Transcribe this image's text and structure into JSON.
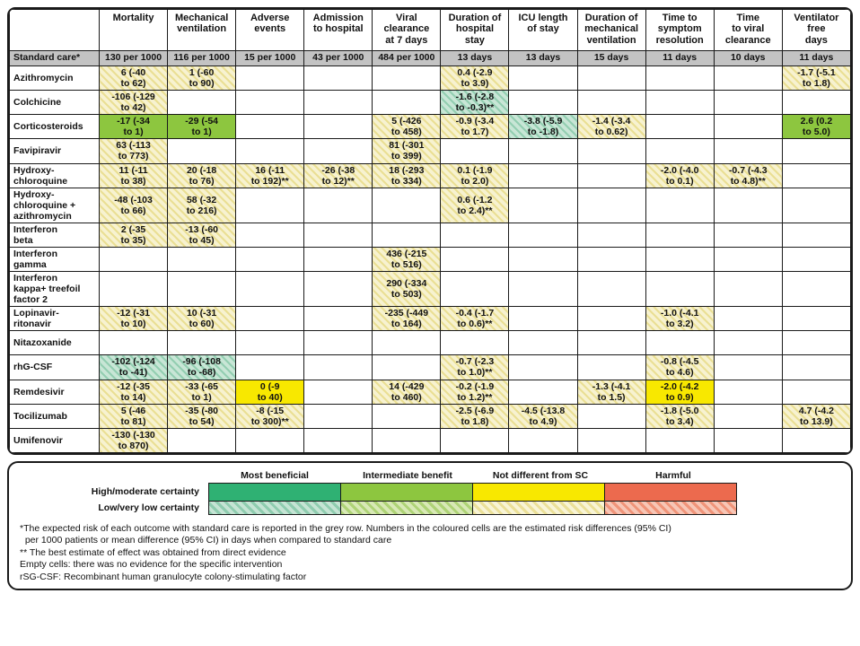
{
  "colors": {
    "most_beneficial_solid": "#2fb173",
    "intermediate_benefit_solid": "#8dc63f",
    "not_different_solid": "#f8e800",
    "harmful_solid": "#ec6a4e",
    "standard_care_row_grey": "#c3c3c3",
    "border": "#1a1a1a"
  },
  "table": {
    "columns": [
      "Mortality",
      "Mechanical\nventilation",
      "Adverse\nevents",
      "Admission\nto hospital",
      "Viral\nclearance\nat 7 days",
      "Duration of\nhospital\nstay",
      "ICU length\nof stay",
      "Duration of\nmechanical\nventilation",
      "Time to\nsymptom\nresolution",
      "Time\nto viral\nclearance",
      "Ventilator\nfree\ndays"
    ],
    "standard_care": {
      "label": "Standard care*",
      "values": [
        "130 per 1000",
        "116 per 1000",
        "15 per 1000",
        "43 per 1000",
        "484 per 1000",
        "13 days",
        "13 days",
        "15 days",
        "11 days",
        "10 days",
        "11 days"
      ]
    },
    "rows": [
      {
        "label": "Azithromycin",
        "cells": [
          {
            "c": 0,
            "text": "6 (-40\nto 62)",
            "style": "yh"
          },
          {
            "c": 1,
            "text": "1 (-60\nto 90)",
            "style": "yh"
          },
          {
            "c": 5,
            "text": "0.4 (-2.9\nto 3.9)",
            "style": "yh"
          },
          {
            "c": 10,
            "text": "-1.7 (-5.1\nto 1.8)",
            "style": "yh"
          }
        ]
      },
      {
        "label": "Colchicine",
        "cells": [
          {
            "c": 0,
            "text": "-106 (-129\nto 42)",
            "style": "yh"
          },
          {
            "c": 5,
            "text": "-1.6 (-2.8\nto -0.3)**",
            "style": "th"
          }
        ]
      },
      {
        "label": "Corticosteroids",
        "cells": [
          {
            "c": 0,
            "text": "-17 (-34\nto 1)",
            "style": "gs"
          },
          {
            "c": 1,
            "text": "-29 (-54\nto 1)",
            "style": "gs"
          },
          {
            "c": 4,
            "text": "5 (-426\nto 458)",
            "style": "yh"
          },
          {
            "c": 5,
            "text": "-0.9 (-3.4\nto 1.7)",
            "style": "yh"
          },
          {
            "c": 6,
            "text": "-3.8 (-5.9\nto -1.8)",
            "style": "th"
          },
          {
            "c": 7,
            "text": "-1.4 (-3.4\nto 0.62)",
            "style": "yh"
          },
          {
            "c": 10,
            "text": "2.6 (0.2\nto 5.0)",
            "style": "gs"
          }
        ]
      },
      {
        "label": "Favipiravir",
        "cells": [
          {
            "c": 0,
            "text": "63 (-113\nto 773)",
            "style": "yh"
          },
          {
            "c": 4,
            "text": "81 (-301\nto 399)",
            "style": "yh"
          }
        ]
      },
      {
        "label": "Hydroxy-\nchloroquine",
        "cells": [
          {
            "c": 0,
            "text": "11 (-11\nto 38)",
            "style": "yh"
          },
          {
            "c": 1,
            "text": "20 (-18\nto 76)",
            "style": "yh"
          },
          {
            "c": 2,
            "text": "16 (-11\nto 192)**",
            "style": "yh"
          },
          {
            "c": 3,
            "text": "-26 (-38\nto 12)**",
            "style": "yh"
          },
          {
            "c": 4,
            "text": "18 (-293\nto 334)",
            "style": "yh"
          },
          {
            "c": 5,
            "text": "0.1 (-1.9\nto 2.0)",
            "style": "yh"
          },
          {
            "c": 8,
            "text": "-2.0 (-4.0\nto 0.1)",
            "style": "yh"
          },
          {
            "c": 9,
            "text": "-0.7 (-4.3\nto 4.8)**",
            "style": "yh"
          }
        ]
      },
      {
        "label": "Hydroxy-\nchloroquine +\nazithromycin",
        "cells": [
          {
            "c": 0,
            "text": "-48 (-103\nto 66)",
            "style": "yh"
          },
          {
            "c": 1,
            "text": "58 (-32\nto 216)",
            "style": "yh"
          },
          {
            "c": 5,
            "text": "0.6 (-1.2\nto 2.4)**",
            "style": "yh"
          }
        ]
      },
      {
        "label": "Interferon\nbeta",
        "cells": [
          {
            "c": 0,
            "text": "2 (-35\nto 35)",
            "style": "yh"
          },
          {
            "c": 1,
            "text": "-13 (-60\nto 45)",
            "style": "yh"
          }
        ]
      },
      {
        "label": "Interferon\ngamma",
        "cells": [
          {
            "c": 4,
            "text": "436 (-215\nto 516)",
            "style": "yh"
          }
        ]
      },
      {
        "label": "Interferon\nkappa+ treefoil\nfactor 2",
        "cells": [
          {
            "c": 4,
            "text": "290 (-334\nto 503)",
            "style": "yh"
          }
        ]
      },
      {
        "label": "Lopinavir-\nritonavir",
        "cells": [
          {
            "c": 0,
            "text": "-12 (-31\nto 10)",
            "style": "yh"
          },
          {
            "c": 1,
            "text": "10 (-31\nto 60)",
            "style": "yh"
          },
          {
            "c": 4,
            "text": "-235 (-449\nto 164)",
            "style": "yh"
          },
          {
            "c": 5,
            "text": "-0.4 (-1.7\nto 0.6)**",
            "style": "yh"
          },
          {
            "c": 8,
            "text": "-1.0 (-4.1\nto 3.2)",
            "style": "yh"
          }
        ]
      },
      {
        "label": "Nitazoxanide",
        "cells": []
      },
      {
        "label": "rhG-CSF",
        "cells": [
          {
            "c": 0,
            "text": "-102 (-124\nto -41)",
            "style": "th"
          },
          {
            "c": 1,
            "text": "-96 (-108\nto -68)",
            "style": "th"
          },
          {
            "c": 5,
            "text": "-0.7 (-2.3\nto 1.0)**",
            "style": "yh"
          },
          {
            "c": 8,
            "text": "-0.8 (-4.5\nto 4.6)",
            "style": "yh"
          }
        ]
      },
      {
        "label": "Remdesivir",
        "cells": [
          {
            "c": 0,
            "text": "-12 (-35\nto 14)",
            "style": "yh"
          },
          {
            "c": 1,
            "text": "-33 (-65\nto 1)",
            "style": "yh"
          },
          {
            "c": 2,
            "text": "0 (-9\nto 40)",
            "style": "ys"
          },
          {
            "c": 4,
            "text": "14 (-429\nto 460)",
            "style": "yh"
          },
          {
            "c": 5,
            "text": "-0.2 (-1.9\nto 1.2)**",
            "style": "yh"
          },
          {
            "c": 7,
            "text": "-1.3 (-4.1\nto 1.5)",
            "style": "yh"
          },
          {
            "c": 8,
            "text": "-2.0 (-4.2\nto 0.9)",
            "style": "ys"
          }
        ]
      },
      {
        "label": "Tocilizumab",
        "cells": [
          {
            "c": 0,
            "text": "5 (-46\nto 81)",
            "style": "yh"
          },
          {
            "c": 1,
            "text": "-35 (-80\nto 54)",
            "style": "yh"
          },
          {
            "c": 2,
            "text": "-8 (-15\nto 300)**",
            "style": "yh"
          },
          {
            "c": 5,
            "text": "-2.5 (-6.9\nto 1.8)",
            "style": "yh"
          },
          {
            "c": 6,
            "text": "-4.5 (-13.8\nto 4.9)",
            "style": "yh"
          },
          {
            "c": 8,
            "text": "-1.8 (-5.0\nto 3.4)",
            "style": "yh"
          },
          {
            "c": 10,
            "text": "4.7 (-4.2\nto 13.9)",
            "style": "yh"
          }
        ]
      },
      {
        "label": "Umifenovir",
        "cells": [
          {
            "c": 0,
            "text": "-130 (-130\nto 870)",
            "style": "yh"
          }
        ]
      }
    ]
  },
  "legend": {
    "categories": [
      {
        "label": "Most beneficial",
        "solid_class": "sw-mb-s",
        "hatched_class": "sw-mb-h"
      },
      {
        "label": "Intermediate benefit",
        "solid_class": "sw-ib-s",
        "hatched_class": "sw-ib-h"
      },
      {
        "label": "Not different from SC",
        "solid_class": "sw-nd-s",
        "hatched_class": "sw-nd-h"
      },
      {
        "label": "Harmful",
        "solid_class": "sw-h-s",
        "hatched_class": "sw-h-h"
      }
    ],
    "row_labels": [
      "High/moderate certainty",
      "Low/very low certainty"
    ]
  },
  "footnotes": [
    "*The expected risk of each outcome with standard care is reported in the grey row. Numbers in the coloured cells are the estimated risk differences (95% CI)\n  per 1000 patients or mean difference (95% CI) in days when compared to standard care",
    "** The best estimate of effect was obtained from direct evidence",
    "Empty cells: there was no evidence for the specific intervention",
    "rSG-CSF: Recombinant human granulocyte colony-stimulating factor"
  ]
}
